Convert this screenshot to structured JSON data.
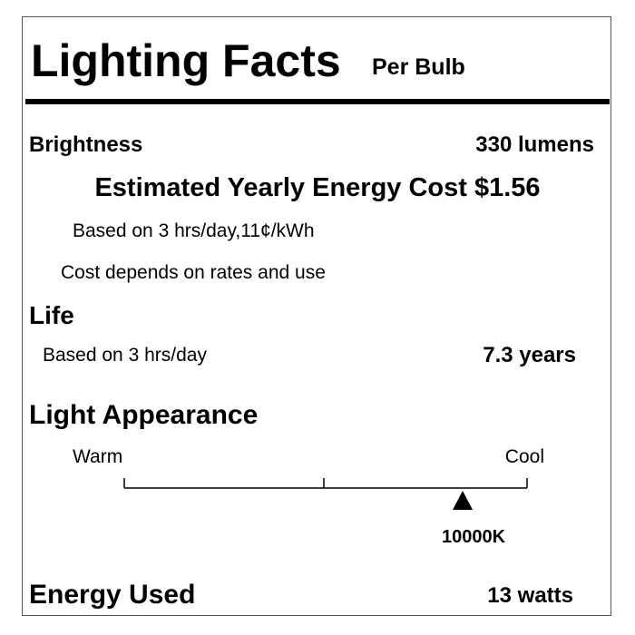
{
  "label": {
    "title": "Lighting Facts",
    "subtitle": "Per Bulb",
    "brightness": {
      "label": "Brightness",
      "value": "330 lumens"
    },
    "energy_cost": {
      "label": "Estimated Yearly Energy Cost $1.56",
      "basis": "Based on 3 hrs/day,11¢/kWh",
      "note": "Cost depends on rates and use"
    },
    "life": {
      "label": "Life",
      "basis": "Based on 3 hrs/day",
      "value": "7.3 years"
    },
    "light_appearance": {
      "label": "Light Appearance",
      "warm": "Warm",
      "cool": "Cool",
      "value": "10000K"
    },
    "energy_used": {
      "label": "Energy Used",
      "value": "13 watts"
    }
  }
}
